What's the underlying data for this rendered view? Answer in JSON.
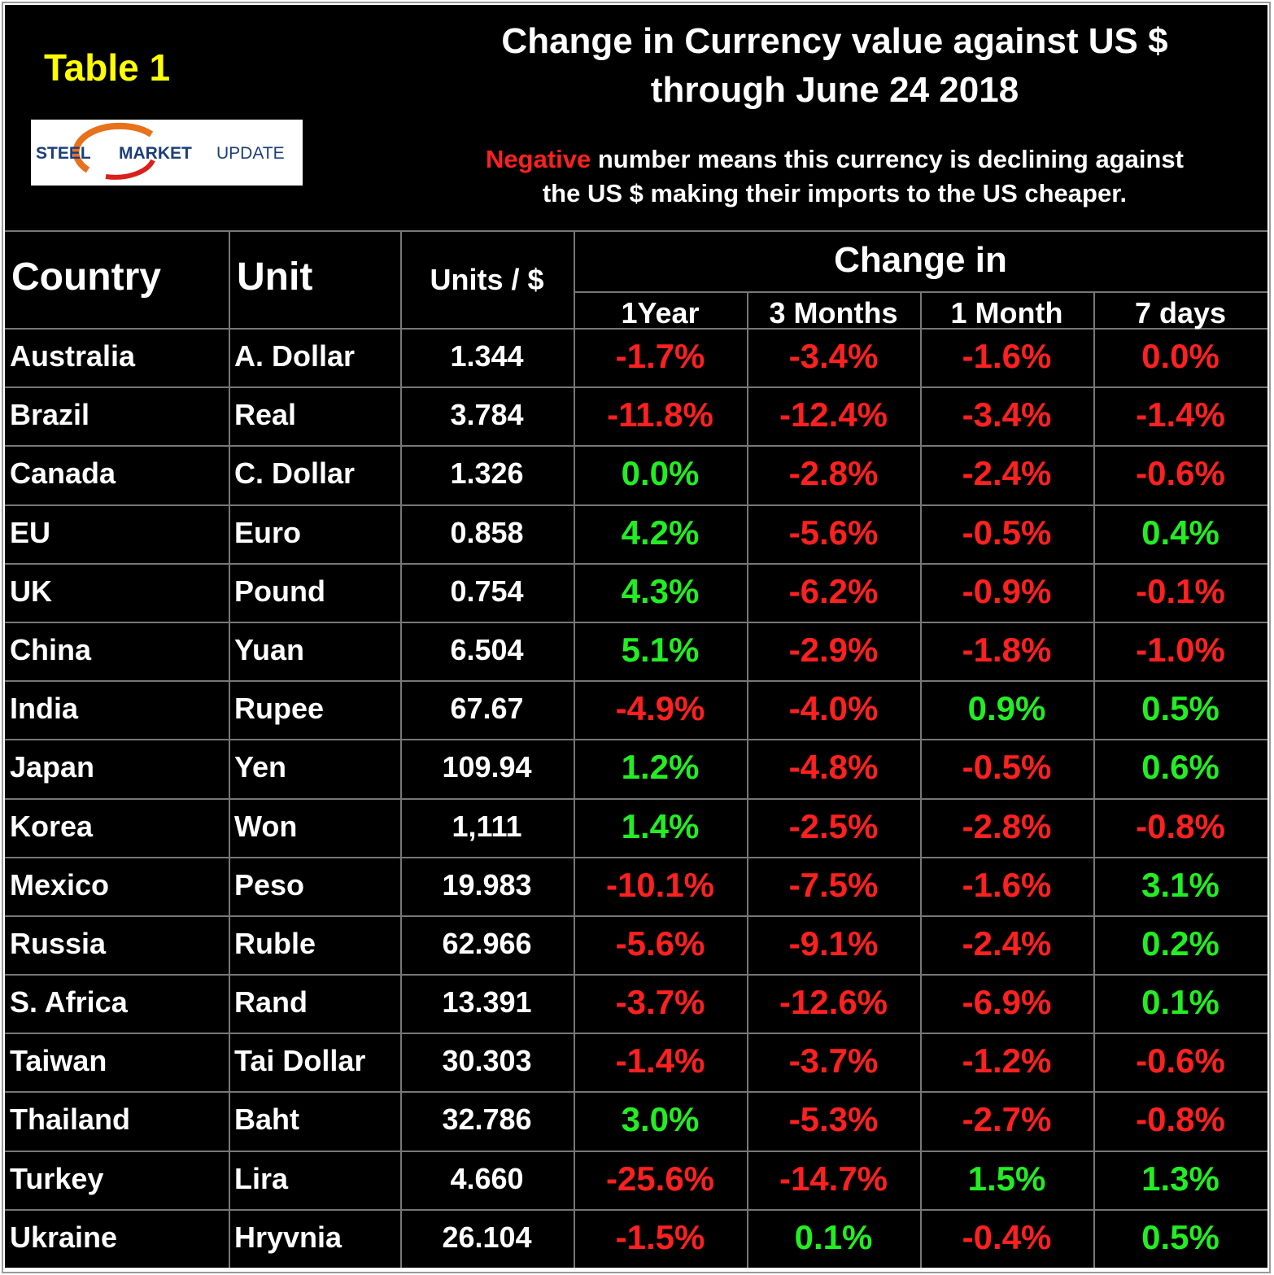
{
  "header": {
    "table_label": "Table 1",
    "logo": {
      "word1": "STEEL",
      "word2": "MARKET",
      "word3": "UPDATE"
    },
    "title_lines": [
      "Change in Currency value against US $",
      "through June 24 2018"
    ],
    "note": {
      "highlight": "Negative",
      "line1": "number means this currency is declining against",
      "line2": "the US $ making their imports to the US cheaper."
    }
  },
  "table": {
    "columns": [
      "Country",
      "Unit",
      "Units / $"
    ],
    "group_header": "Change in",
    "subcolumns": [
      "1Year",
      "3 Months",
      "1 Month",
      "7 days"
    ],
    "rows": [
      {
        "country": "Australia",
        "unit": "A. Dollar",
        "units_per_dollar": "1.344",
        "changes": [
          "-1.7%",
          "-3.4%",
          "-1.6%",
          "0.0%"
        ],
        "colors": [
          "red",
          "red",
          "red",
          "red"
        ]
      },
      {
        "country": "Brazil",
        "unit": "Real",
        "units_per_dollar": "3.784",
        "changes": [
          "-11.8%",
          "-12.4%",
          "-3.4%",
          "-1.4%"
        ],
        "colors": [
          "red",
          "red",
          "red",
          "red"
        ]
      },
      {
        "country": "Canada",
        "unit": "C. Dollar",
        "units_per_dollar": "1.326",
        "changes": [
          "0.0%",
          "-2.8%",
          "-2.4%",
          "-0.6%"
        ],
        "colors": [
          "green",
          "red",
          "red",
          "red"
        ]
      },
      {
        "country": "EU",
        "unit": "Euro",
        "units_per_dollar": "0.858",
        "changes": [
          "4.2%",
          "-5.6%",
          "-0.5%",
          "0.4%"
        ],
        "colors": [
          "green",
          "red",
          "red",
          "green"
        ]
      },
      {
        "country": "UK",
        "unit": "Pound",
        "units_per_dollar": "0.754",
        "changes": [
          "4.3%",
          "-6.2%",
          "-0.9%",
          "-0.1%"
        ],
        "colors": [
          "green",
          "red",
          "red",
          "red"
        ]
      },
      {
        "country": "China",
        "unit": "Yuan",
        "units_per_dollar": "6.504",
        "changes": [
          "5.1%",
          "-2.9%",
          "-1.8%",
          "-1.0%"
        ],
        "colors": [
          "green",
          "red",
          "red",
          "red"
        ]
      },
      {
        "country": "India",
        "unit": "Rupee",
        "units_per_dollar": "67.67",
        "changes": [
          "-4.9%",
          "-4.0%",
          "0.9%",
          "0.5%"
        ],
        "colors": [
          "red",
          "red",
          "green",
          "green"
        ]
      },
      {
        "country": "Japan",
        "unit": "Yen",
        "units_per_dollar": "109.94",
        "changes": [
          "1.2%",
          "-4.8%",
          "-0.5%",
          "0.6%"
        ],
        "colors": [
          "green",
          "red",
          "red",
          "green"
        ]
      },
      {
        "country": "Korea",
        "unit": "Won",
        "units_per_dollar": "1,111",
        "changes": [
          "1.4%",
          "-2.5%",
          "-2.8%",
          "-0.8%"
        ],
        "colors": [
          "green",
          "red",
          "red",
          "red"
        ]
      },
      {
        "country": "Mexico",
        "unit": "Peso",
        "units_per_dollar": "19.983",
        "changes": [
          "-10.1%",
          "-7.5%",
          "-1.6%",
          "3.1%"
        ],
        "colors": [
          "red",
          "red",
          "red",
          "green"
        ]
      },
      {
        "country": "Russia",
        "unit": "Ruble",
        "units_per_dollar": "62.966",
        "changes": [
          "-5.6%",
          "-9.1%",
          "-2.4%",
          "0.2%"
        ],
        "colors": [
          "red",
          "red",
          "red",
          "green"
        ]
      },
      {
        "country": "S. Africa",
        "unit": "Rand",
        "units_per_dollar": "13.391",
        "changes": [
          "-3.7%",
          "-12.6%",
          "-6.9%",
          "0.1%"
        ],
        "colors": [
          "red",
          "red",
          "red",
          "green"
        ]
      },
      {
        "country": "Taiwan",
        "unit": "Tai Dollar",
        "units_per_dollar": "30.303",
        "changes": [
          "-1.4%",
          "-3.7%",
          "-1.2%",
          "-0.6%"
        ],
        "colors": [
          "red",
          "red",
          "red",
          "red"
        ]
      },
      {
        "country": "Thailand",
        "unit": "Baht",
        "units_per_dollar": "32.786",
        "changes": [
          "3.0%",
          "-5.3%",
          "-2.7%",
          "-0.8%"
        ],
        "colors": [
          "green",
          "red",
          "red",
          "red"
        ]
      },
      {
        "country": "Turkey",
        "unit": "Lira",
        "units_per_dollar": "4.660",
        "changes": [
          "-25.6%",
          "-14.7%",
          "1.5%",
          "1.3%"
        ],
        "colors": [
          "red",
          "red",
          "green",
          "green"
        ]
      },
      {
        "country": "Ukraine",
        "unit": "Hryvnia",
        "units_per_dollar": "26.104",
        "changes": [
          "-1.5%",
          "0.1%",
          "-0.4%",
          "0.5%"
        ],
        "colors": [
          "red",
          "green",
          "red",
          "green"
        ]
      }
    ]
  }
}
